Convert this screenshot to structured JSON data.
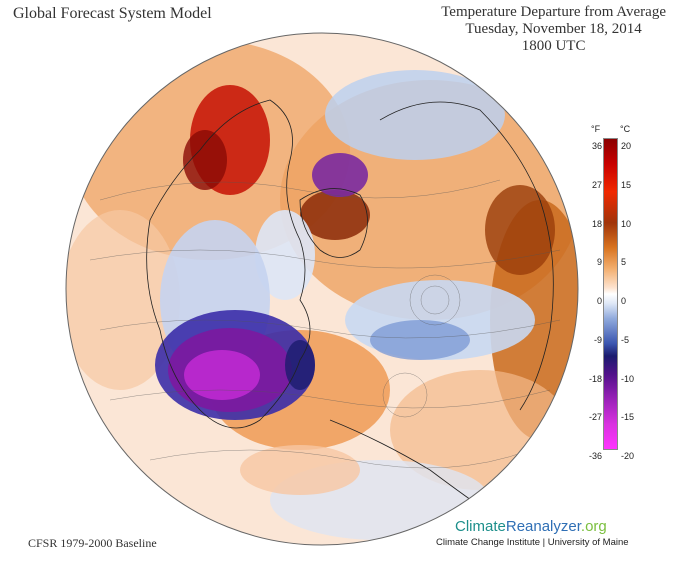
{
  "header": {
    "model_title": "Global Forecast System Model",
    "product_title": "Temperature Departure from Average",
    "date": "Tuesday, November 18, 2014",
    "time": "1800 UTC"
  },
  "legend": {
    "unit_f": "°F",
    "unit_c": "°C",
    "ticks_f": [
      "36",
      "27",
      "18",
      "9",
      "0",
      "-9",
      "-18",
      "-27",
      "-36"
    ],
    "ticks_c": [
      "20",
      "15",
      "10",
      "5",
      "0",
      "-5",
      "-10",
      "-15",
      "-20"
    ],
    "colors": {
      "extreme_warm": "#c80000",
      "warm": "#d8731f",
      "neutral": "#ffffff",
      "cool": "#8fa9dc",
      "cold": "#1b1b6e",
      "extreme_cold": "#ff33ff"
    }
  },
  "footer": {
    "baseline": "CFSR 1979-2000 Baseline",
    "brand_part1": "Climate",
    "brand_part2": "Reanalyzer",
    "brand_part3": ".org",
    "credit": "Climate Change Institute | University of Maine"
  }
}
